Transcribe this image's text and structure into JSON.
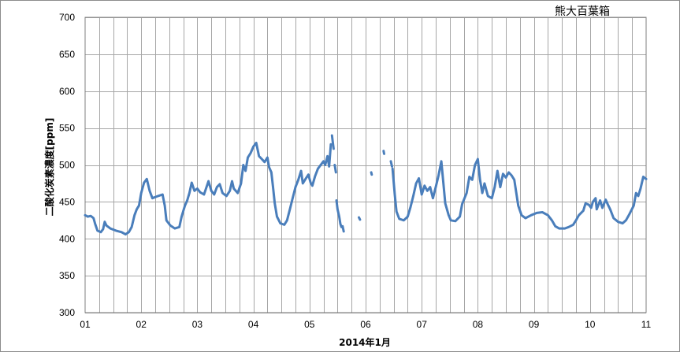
{
  "chart_data": {
    "type": "line",
    "watermark": "熊大百葉箱",
    "xlabel": "2014年1月",
    "ylabel": "二酸化炭素濃度[ppm]",
    "ylim": [
      300,
      700
    ],
    "yticks": [
      300,
      350,
      400,
      450,
      500,
      550,
      600,
      650,
      700
    ],
    "xlim": [
      1,
      11
    ],
    "xtick_values": [
      1,
      2,
      3,
      4,
      5,
      6,
      7,
      8,
      9,
      10,
      11
    ],
    "xtick_labels": [
      "01",
      "02",
      "03",
      "04",
      "05",
      "06",
      "07",
      "08",
      "09",
      "10",
      "11"
    ],
    "minor_grid_per_day": 4,
    "grid": true,
    "line_color": "#4a7ebb",
    "segments": [
      [
        [
          1.0,
          432
        ],
        [
          1.05,
          430
        ],
        [
          1.1,
          431
        ],
        [
          1.15,
          428
        ],
        [
          1.18,
          420
        ],
        [
          1.22,
          411
        ],
        [
          1.28,
          409
        ],
        [
          1.32,
          413
        ],
        [
          1.35,
          423
        ],
        [
          1.38,
          418
        ],
        [
          1.45,
          414
        ],
        [
          1.55,
          411
        ],
        [
          1.65,
          409
        ],
        [
          1.72,
          406
        ],
        [
          1.78,
          409
        ],
        [
          1.83,
          416
        ],
        [
          1.88,
          432
        ],
        [
          1.92,
          440
        ],
        [
          1.96,
          445
        ],
        [
          2.0,
          462
        ],
        [
          2.05,
          476
        ],
        [
          2.1,
          481
        ],
        [
          2.15,
          465
        ],
        [
          2.2,
          455
        ],
        [
          2.3,
          458
        ],
        [
          2.38,
          460
        ],
        [
          2.42,
          445
        ],
        [
          2.45,
          425
        ],
        [
          2.52,
          418
        ],
        [
          2.6,
          414
        ],
        [
          2.68,
          416
        ],
        [
          2.72,
          430
        ],
        [
          2.78,
          445
        ],
        [
          2.82,
          452
        ],
        [
          2.86,
          462
        ],
        [
          2.9,
          476
        ],
        [
          2.95,
          465
        ],
        [
          3.0,
          468
        ],
        [
          3.05,
          463
        ],
        [
          3.12,
          460
        ],
        [
          3.2,
          478
        ],
        [
          3.25,
          465
        ],
        [
          3.3,
          460
        ],
        [
          3.35,
          470
        ],
        [
          3.4,
          474
        ],
        [
          3.45,
          462
        ],
        [
          3.52,
          458
        ],
        [
          3.58,
          465
        ],
        [
          3.62,
          478
        ],
        [
          3.65,
          468
        ],
        [
          3.72,
          462
        ],
        [
          3.78,
          475
        ],
        [
          3.82,
          500
        ],
        [
          3.86,
          492
        ],
        [
          3.9,
          510
        ],
        [
          3.95,
          516
        ],
        [
          4.0,
          525
        ],
        [
          4.05,
          530
        ],
        [
          4.1,
          512
        ],
        [
          4.15,
          508
        ],
        [
          4.2,
          504
        ],
        [
          4.25,
          510
        ],
        [
          4.28,
          497
        ],
        [
          4.32,
          490
        ],
        [
          4.35,
          470
        ],
        [
          4.38,
          448
        ],
        [
          4.42,
          430
        ],
        [
          4.48,
          421
        ],
        [
          4.55,
          419
        ],
        [
          4.6,
          425
        ],
        [
          4.65,
          440
        ],
        [
          4.7,
          455
        ],
        [
          4.75,
          470
        ],
        [
          4.8,
          480
        ],
        [
          4.85,
          492
        ],
        [
          4.88,
          475
        ],
        [
          4.92,
          480
        ],
        [
          4.98,
          487
        ],
        [
          5.02,
          476
        ],
        [
          5.05,
          472
        ],
        [
          5.1,
          485
        ],
        [
          5.15,
          495
        ],
        [
          5.2,
          500
        ],
        [
          5.25,
          505
        ],
        [
          5.28,
          500
        ],
        [
          5.32,
          512
        ],
        [
          5.35,
          498
        ],
        [
          5.38,
          528
        ]
      ],
      [
        [
          5.4,
          540
        ],
        [
          5.43,
          522
        ]
      ],
      [
        [
          5.45,
          500
        ],
        [
          5.47,
          490
        ]
      ],
      [
        [
          5.48,
          452
        ],
        [
          5.5,
          440
        ],
        [
          5.53,
          430
        ],
        [
          5.55,
          420
        ],
        [
          5.57,
          416
        ]
      ],
      [
        [
          5.59,
          417
        ],
        [
          5.61,
          410
        ]
      ],
      [
        [
          5.88,
          429
        ],
        [
          5.9,
          426
        ]
      ],
      [
        [
          6.1,
          490
        ],
        [
          6.11,
          487
        ]
      ],
      [
        [
          6.32,
          519
        ],
        [
          6.33,
          515
        ]
      ],
      [
        [
          6.45,
          505
        ],
        [
          6.47,
          498
        ]
      ],
      [
        [
          6.48,
          495
        ],
        [
          6.52,
          460
        ],
        [
          6.55,
          437
        ],
        [
          6.6,
          427
        ],
        [
          6.68,
          425
        ],
        [
          6.75,
          430
        ],
        [
          6.8,
          443
        ],
        [
          6.85,
          458
        ],
        [
          6.9,
          475
        ],
        [
          6.95,
          482
        ],
        [
          7.0,
          460
        ],
        [
          7.05,
          472
        ],
        [
          7.1,
          465
        ],
        [
          7.15,
          470
        ],
        [
          7.2,
          455
        ],
        [
          7.25,
          470
        ],
        [
          7.3,
          486
        ],
        [
          7.35,
          505
        ],
        [
          7.38,
          480
        ],
        [
          7.42,
          448
        ],
        [
          7.48,
          432
        ],
        [
          7.52,
          425
        ],
        [
          7.6,
          424
        ],
        [
          7.68,
          430
        ],
        [
          7.72,
          447
        ],
        [
          7.8,
          462
        ],
        [
          7.85,
          484
        ],
        [
          7.9,
          480
        ],
        [
          7.95,
          500
        ],
        [
          8.0,
          508
        ],
        [
          8.04,
          480
        ],
        [
          8.08,
          462
        ],
        [
          8.12,
          475
        ],
        [
          8.18,
          458
        ],
        [
          8.25,
          455
        ],
        [
          8.3,
          470
        ],
        [
          8.35,
          492
        ],
        [
          8.4,
          470
        ],
        [
          8.45,
          488
        ],
        [
          8.5,
          483
        ],
        [
          8.55,
          490
        ],
        [
          8.6,
          486
        ],
        [
          8.65,
          480
        ],
        [
          8.72,
          445
        ],
        [
          8.78,
          432
        ],
        [
          8.85,
          428
        ],
        [
          8.95,
          432
        ],
        [
          9.05,
          435
        ],
        [
          9.15,
          436
        ],
        [
          9.25,
          432
        ],
        [
          9.32,
          425
        ],
        [
          9.38,
          417
        ],
        [
          9.45,
          414
        ],
        [
          9.55,
          414
        ],
        [
          9.62,
          416
        ],
        [
          9.7,
          419
        ],
        [
          9.75,
          425
        ],
        [
          9.8,
          432
        ],
        [
          9.88,
          438
        ],
        [
          9.92,
          448
        ],
        [
          9.98,
          446
        ],
        [
          10.02,
          442
        ],
        [
          10.05,
          450
        ],
        [
          10.1,
          455
        ],
        [
          10.12,
          440
        ],
        [
          10.18,
          452
        ],
        [
          10.22,
          442
        ],
        [
          10.28,
          453
        ],
        [
          10.32,
          446
        ],
        [
          10.36,
          440
        ],
        [
          10.42,
          428
        ],
        [
          10.5,
          423
        ],
        [
          10.58,
          421
        ],
        [
          10.64,
          425
        ],
        [
          10.7,
          433
        ],
        [
          10.78,
          445
        ],
        [
          10.82,
          462
        ],
        [
          10.86,
          458
        ],
        [
          10.9,
          468
        ],
        [
          10.95,
          484
        ],
        [
          11.0,
          481
        ]
      ]
    ]
  }
}
